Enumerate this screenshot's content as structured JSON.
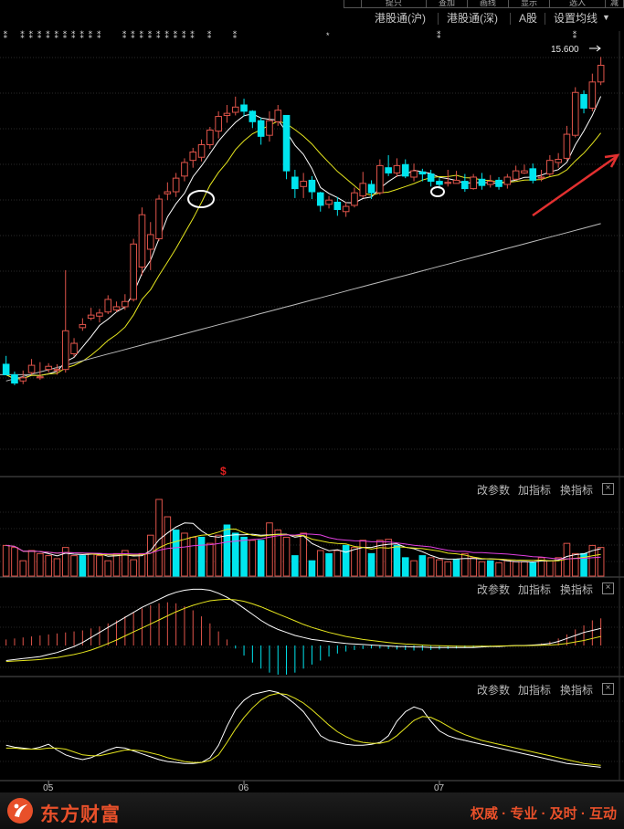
{
  "toolbar": {
    "items": [
      "港股通(沪)",
      "港股通(深)",
      "A股",
      "设置均线"
    ],
    "top_tabs": [
      "",
      "提只",
      "查加",
      "画线",
      "显示",
      "选入",
      "减"
    ]
  },
  "price_panel": {
    "last_price_label": "15.600",
    "signal_marker": "$"
  },
  "panel_tools": {
    "change_params": "改参数",
    "add_indicator": "加指标",
    "swap_indicator": "换指标"
  },
  "x_axis": {
    "ticks": [
      "05",
      "06",
      "07"
    ]
  },
  "footer": {
    "brand": "东方财富",
    "slogan": "权威 · 专业 · 及时 · 互动"
  },
  "colors": {
    "up": "#e0544a",
    "down": "#00e5ee",
    "ma_white": "#ffffff",
    "ma_yellow": "#e6e61e",
    "ma_gray": "#bdbdbd",
    "vol_ma_magenta": "#e040e0",
    "annotation_arrow": "#e23030",
    "brand": "#e8502a"
  },
  "chart_data": {
    "type": "candlestick",
    "candles": [
      [
        1.0,
        0.0,
        1.8,
        0.0
      ],
      [
        0.0,
        -0.8,
        0.3,
        -1.0
      ],
      [
        -0.6,
        -0.3,
        0.4,
        -0.9
      ],
      [
        0.2,
        0.9,
        1.5,
        0.0
      ],
      [
        -0.3,
        -0.2,
        1.2,
        -0.5
      ],
      [
        0.5,
        0.8,
        1.1,
        0.2
      ],
      [
        0.4,
        0.5,
        1.0,
        0.0
      ],
      [
        0.5,
        4.2,
        10.0,
        0.2
      ],
      [
        2.0,
        3.0,
        3.5,
        1.7
      ],
      [
        4.5,
        4.8,
        5.4,
        4.2
      ],
      [
        5.4,
        5.7,
        6.4,
        5.2
      ],
      [
        5.6,
        5.9,
        6.3,
        5.0
      ],
      [
        6.0,
        7.2,
        7.6,
        5.8
      ],
      [
        6.2,
        6.5,
        7.0,
        6.0
      ],
      [
        6.5,
        7.0,
        7.7,
        6.2
      ],
      [
        7.2,
        12.5,
        13.0,
        7.0
      ],
      [
        10.3,
        15.3,
        16.0,
        9.5
      ],
      [
        12.0,
        13.4,
        14.6,
        10.0
      ],
      [
        13.0,
        16.8,
        17.2,
        12.8
      ],
      [
        17.3,
        17.5,
        18.4,
        16.7
      ],
      [
        17.5,
        18.8,
        19.3,
        17.0
      ],
      [
        19.0,
        20.3,
        20.7,
        18.5
      ],
      [
        20.5,
        21.3,
        21.7,
        19.8
      ],
      [
        20.8,
        22.0,
        22.5,
        20.4
      ],
      [
        22.0,
        23.4,
        23.7,
        21.6
      ],
      [
        23.3,
        24.7,
        25.2,
        22.6
      ],
      [
        24.8,
        25.0,
        25.8,
        24.1
      ],
      [
        25.1,
        25.6,
        26.6,
        24.8
      ],
      [
        25.8,
        25.2,
        26.4,
        24.7
      ],
      [
        25.2,
        24.2,
        25.3,
        23.6
      ],
      [
        24.3,
        22.8,
        24.6,
        22.0
      ],
      [
        22.9,
        24.3,
        25.2,
        22.3
      ],
      [
        24.2,
        25.3,
        25.8,
        23.8
      ],
      [
        24.8,
        19.5,
        20.4,
        18.7
      ],
      [
        18.9,
        17.8,
        19.6,
        16.9
      ],
      [
        18.0,
        18.5,
        19.3,
        16.9
      ],
      [
        18.6,
        17.5,
        19.0,
        16.8
      ],
      [
        17.4,
        16.2,
        17.5,
        15.6
      ],
      [
        16.3,
        16.7,
        17.1,
        15.9
      ],
      [
        16.5,
        15.8,
        17.0,
        15.2
      ],
      [
        15.6,
        16.1,
        16.5,
        15.1
      ],
      [
        16.2,
        17.4,
        17.9,
        16.0
      ],
      [
        17.1,
        18.3,
        19.4,
        16.9
      ],
      [
        18.2,
        17.4,
        18.6,
        16.8
      ],
      [
        17.4,
        20.0,
        20.6,
        17.2
      ],
      [
        19.8,
        19.3,
        21.0,
        19.0
      ],
      [
        19.3,
        20.0,
        20.7,
        18.9
      ],
      [
        20.1,
        19.0,
        20.6,
        18.8
      ],
      [
        18.9,
        19.5,
        20.2,
        18.5
      ],
      [
        19.4,
        19.2,
        19.7,
        18.5
      ],
      [
        19.2,
        18.5,
        19.6,
        18.0
      ],
      [
        18.5,
        18.2,
        18.8,
        17.8
      ],
      [
        18.3,
        18.4,
        19.6,
        18.0
      ],
      [
        18.3,
        18.6,
        19.5,
        18.3
      ],
      [
        18.5,
        17.8,
        19.2,
        17.5
      ],
      [
        17.8,
        18.9,
        19.2,
        17.7
      ],
      [
        18.7,
        18.1,
        19.3,
        17.7
      ],
      [
        18.2,
        18.5,
        19.1,
        17.9
      ],
      [
        18.6,
        18.0,
        18.9,
        17.7
      ],
      [
        18.2,
        18.9,
        19.2,
        17.8
      ],
      [
        18.7,
        19.5,
        20.0,
        18.6
      ],
      [
        19.3,
        19.5,
        20.1,
        19.2
      ],
      [
        19.7,
        18.6,
        20.2,
        18.3
      ],
      [
        18.8,
        18.9,
        19.6,
        18.5
      ],
      [
        19.2,
        20.5,
        21.0,
        19.0
      ],
      [
        20.3,
        20.6,
        21.2,
        19.8
      ],
      [
        20.7,
        23.0,
        23.8,
        20.5
      ],
      [
        22.9,
        27.0,
        27.5,
        22.7
      ],
      [
        26.8,
        25.5,
        27.2,
        25.0
      ],
      [
        25.5,
        28.0,
        28.8,
        25.2
      ],
      [
        28.0,
        29.6,
        30.4,
        27.7
      ]
    ],
    "price_range": [
      -8,
      32
    ],
    "last_price": 15.6,
    "volume": [
      30,
      28,
      15,
      25,
      22,
      20,
      17,
      28,
      20,
      20,
      22,
      20,
      15,
      22,
      25,
      16,
      22,
      40,
      75,
      58,
      45,
      42,
      38,
      38,
      32,
      40,
      50,
      42,
      38,
      35,
      35,
      52,
      45,
      38,
      20,
      42,
      15,
      25,
      22,
      25,
      30,
      28,
      35,
      22,
      35,
      36,
      30,
      18,
      15,
      20,
      18,
      16,
      14,
      16,
      22,
      18,
      14,
      15,
      13,
      15,
      14,
      14,
      13,
      18,
      15,
      18,
      32,
      22,
      22,
      30,
      28
    ],
    "volume_down_indices": [
      9,
      20,
      23,
      26,
      27,
      28,
      30,
      34,
      36,
      38,
      40,
      43,
      46,
      47,
      49,
      53,
      57,
      62,
      68
    ],
    "macd_hist": [
      0.6,
      0.7,
      0.8,
      0.9,
      1.0,
      1.1,
      1.2,
      1.3,
      1.4,
      1.5,
      1.7,
      1.9,
      2.2,
      2.5,
      2.9,
      3.3,
      3.7,
      4.0,
      4.2,
      4.3,
      4.2,
      3.9,
      3.5,
      2.9,
      2.2,
      1.4,
      0.6,
      -0.3,
      -1.0,
      -1.7,
      -2.3,
      -2.7,
      -2.9,
      -2.9,
      -2.7,
      -2.3,
      -1.9,
      -1.5,
      -1.1,
      -0.8,
      -0.6,
      -0.45,
      -0.35,
      -0.3,
      -0.3,
      -0.35,
      -0.4,
      -0.45,
      -0.5,
      -0.5,
      -0.45,
      -0.4,
      -0.35,
      -0.3,
      -0.25,
      -0.2,
      -0.15,
      -0.1,
      -0.05,
      -0.05,
      0.0,
      0.05,
      0.1,
      0.2,
      0.4,
      0.7,
      1.1,
      1.6,
      2.0,
      2.5,
      2.7
    ],
    "kdj_range": [
      0,
      100
    ],
    "indicator_lines": {
      "macd_dif_white": [
        -1.5,
        -1.4,
        -1.3,
        -1.2,
        -1.1,
        -0.9,
        -0.7,
        -0.4,
        -0.1,
        0.3,
        0.8,
        1.3,
        1.8,
        2.3,
        2.8,
        3.3,
        3.8,
        4.2,
        4.6,
        5.0,
        5.3,
        5.5,
        5.6,
        5.6,
        5.5,
        5.2,
        4.8,
        4.3,
        3.7,
        3.1,
        2.5,
        2.0,
        1.6,
        1.3,
        1.0,
        0.8,
        0.6,
        0.5,
        0.4,
        0.3,
        0.2,
        0.15,
        0.1,
        0.05,
        0.0,
        -0.05,
        -0.1,
        -0.1,
        -0.15,
        -0.15,
        -0.2,
        -0.2,
        -0.2,
        -0.2,
        -0.2,
        -0.2,
        -0.15,
        -0.1,
        -0.1,
        -0.05,
        0.0,
        0.0,
        0.05,
        0.1,
        0.2,
        0.4,
        0.7,
        1.0,
        1.3,
        1.5,
        1.7
      ],
      "macd_dea_yellow": [
        -1.6,
        -1.55,
        -1.5,
        -1.45,
        -1.4,
        -1.3,
        -1.2,
        -1.05,
        -0.9,
        -0.7,
        -0.45,
        -0.15,
        0.2,
        0.55,
        0.95,
        1.35,
        1.75,
        2.15,
        2.55,
        2.95,
        3.35,
        3.7,
        4.0,
        4.25,
        4.45,
        4.55,
        4.6,
        4.55,
        4.4,
        4.15,
        3.85,
        3.5,
        3.15,
        2.8,
        2.45,
        2.1,
        1.8,
        1.55,
        1.3,
        1.1,
        0.9,
        0.75,
        0.6,
        0.5,
        0.4,
        0.3,
        0.22,
        0.15,
        0.1,
        0.05,
        0.0,
        -0.02,
        -0.05,
        -0.07,
        -0.08,
        -0.08,
        -0.07,
        -0.06,
        -0.05,
        -0.04,
        -0.03,
        -0.02,
        0.0,
        0.02,
        0.05,
        0.1,
        0.2,
        0.35,
        0.5,
        0.7,
        0.9
      ],
      "kdj_white": [
        35,
        33,
        32,
        31,
        33,
        36,
        30,
        25,
        22,
        20,
        22,
        26,
        30,
        33,
        32,
        29,
        26,
        23,
        20,
        18,
        17,
        16,
        16,
        17,
        22,
        35,
        55,
        72,
        82,
        88,
        90,
        92,
        90,
        85,
        78,
        70,
        58,
        45,
        40,
        38,
        36,
        35,
        35,
        36,
        38,
        45,
        60,
        70,
        75,
        72,
        60,
        50,
        45,
        42,
        40,
        38,
        36,
        34,
        32,
        30,
        28,
        26,
        24,
        22,
        20,
        18,
        16,
        15,
        14,
        13,
        12
      ],
      "kdj_yellow": [
        32,
        32,
        31,
        31,
        31,
        32,
        32,
        31,
        28,
        25,
        24,
        24,
        26,
        28,
        30,
        30,
        29,
        27,
        25,
        22,
        20,
        18,
        17,
        17,
        19,
        25,
        38,
        52,
        64,
        74,
        82,
        87,
        89,
        88,
        84,
        79,
        72,
        64,
        56,
        49,
        44,
        40,
        38,
        37,
        37,
        39,
        45,
        53,
        61,
        65,
        64,
        60,
        55,
        50,
        46,
        43,
        40,
        38,
        36,
        34,
        32,
        30,
        28,
        26,
        24,
        22,
        20,
        18,
        16,
        15,
        14
      ]
    }
  }
}
